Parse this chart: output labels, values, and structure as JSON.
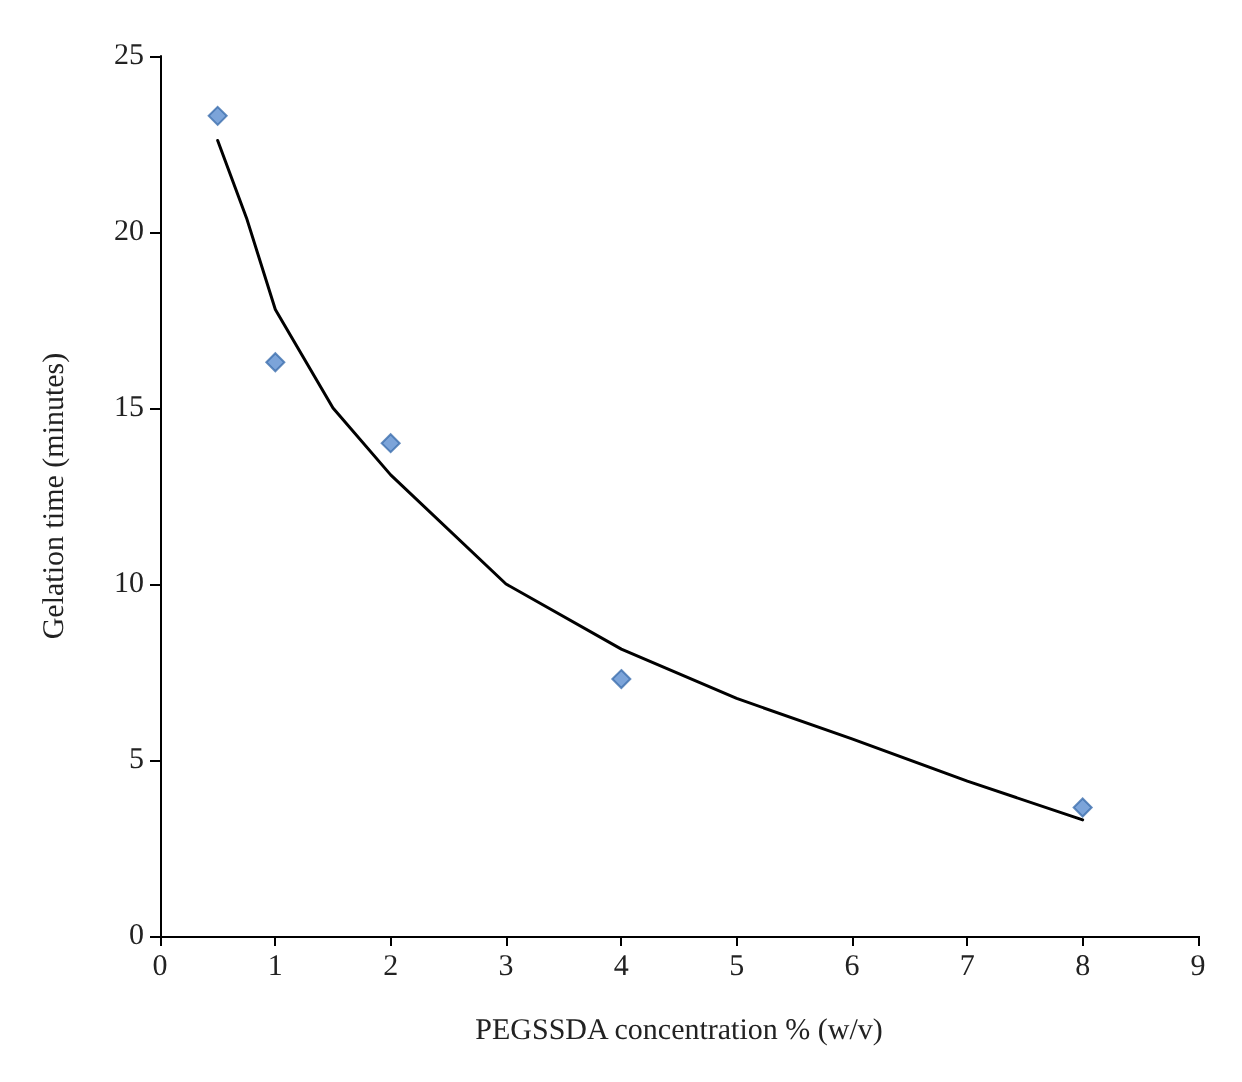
{
  "chart_data": {
    "type": "scatter",
    "xlabel": "PEGSSDA concentration % (w/v)",
    "ylabel": "Gelation time (minutes)",
    "xlim": [
      0,
      9
    ],
    "xticks": [
      0,
      1,
      2,
      3,
      4,
      5,
      6,
      7,
      8,
      9
    ],
    "ylim": [
      0,
      25
    ],
    "yticks": [
      0,
      5,
      10,
      15,
      20,
      25
    ],
    "grid": false,
    "series": [
      {
        "type": "scatter",
        "color": "#5b8dcf",
        "marker": "diamond",
        "x": [
          0.5,
          1,
          2,
          4,
          8
        ],
        "values": [
          23.3,
          16.3,
          14.0,
          7.3,
          3.65
        ]
      },
      {
        "type": "line",
        "color": "#000000",
        "marker": "none",
        "line_style": "solid",
        "x": [
          0.5,
          0.75,
          1,
          1.5,
          2,
          3,
          4,
          5,
          6,
          7,
          8
        ],
        "values": [
          22.6,
          20.4,
          17.8,
          15.0,
          13.1,
          10.0,
          8.15,
          6.75,
          5.6,
          4.4,
          3.3
        ]
      }
    ]
  }
}
